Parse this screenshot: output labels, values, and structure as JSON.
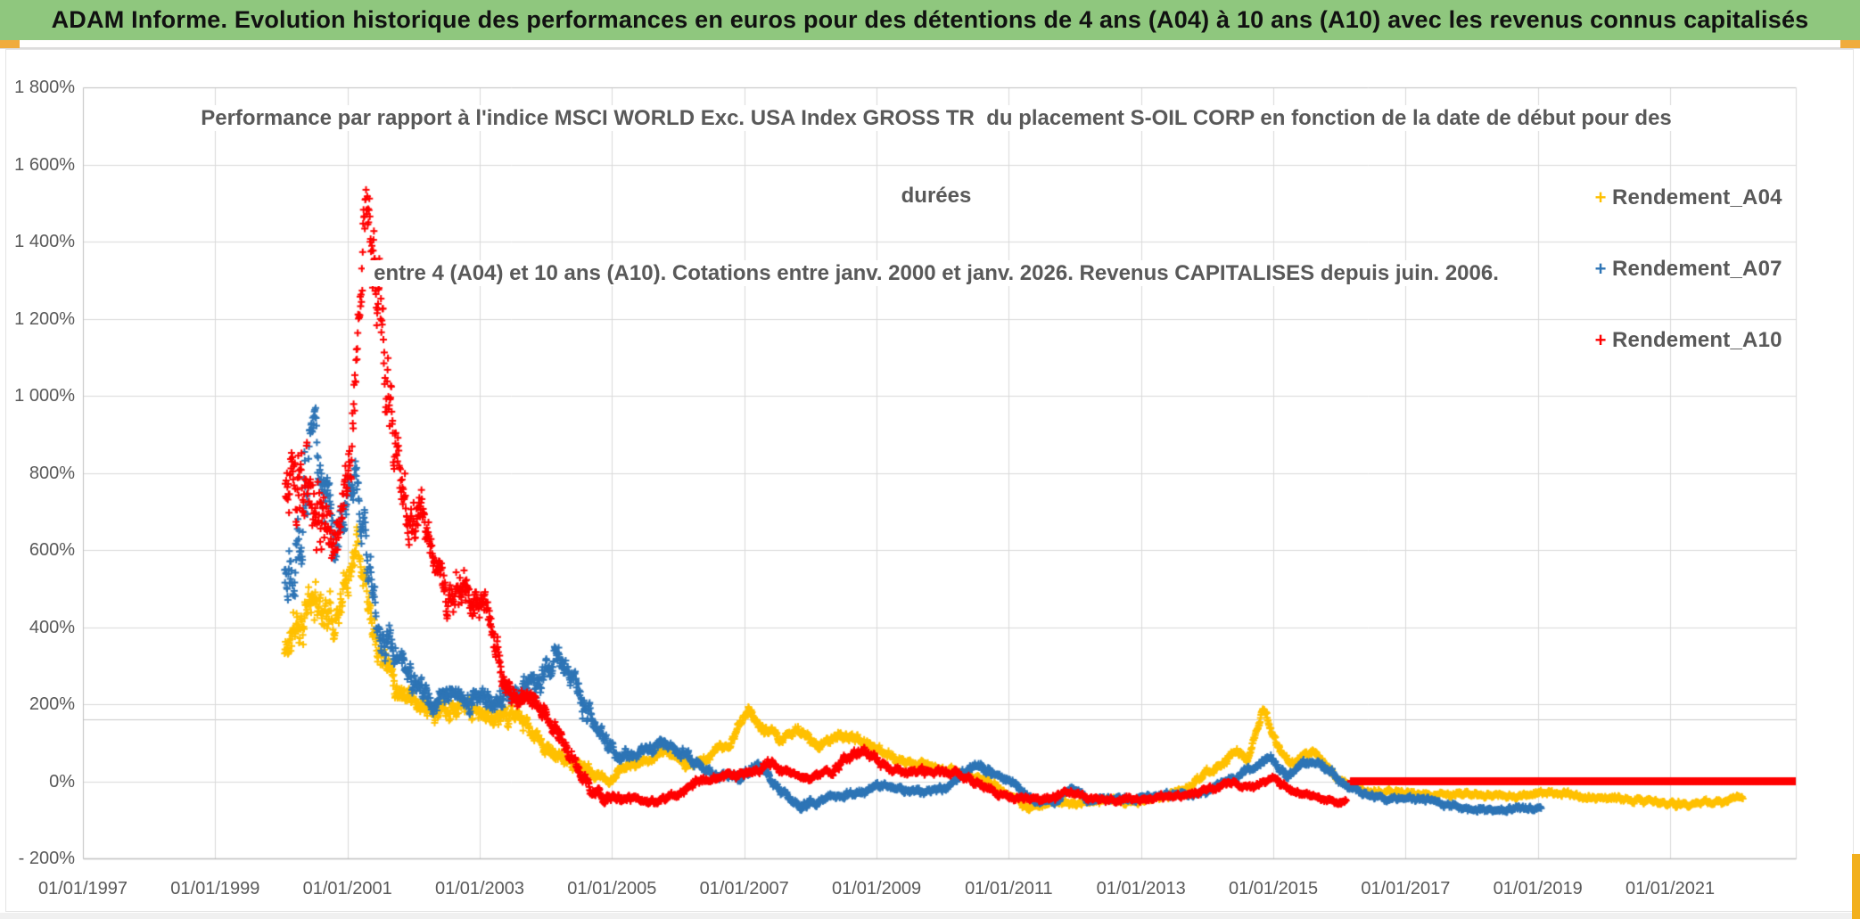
{
  "header": {
    "title": "ADAM Informe. Evolution historique des performances en euros pour des détentions de 4 ans (A04) à 10 ans (A10) avec les revenus connus capitalisés",
    "bg_color": "#8FC77E",
    "accent_color": "#F0AC3C"
  },
  "chart_data": {
    "type": "scatter",
    "title_lines": [
      "Performance par rapport à l'indice MSCI WORLD Exc. USA Index GROSS TR  du placement S-OIL CORP en fonction de la date de début pour des",
      "durées",
      "entre 4 (A04) et 10 ans (A10). Cotations entre janv. 2000 et janv. 2026. Revenus CAPITALISES depuis juin. 2006."
    ],
    "xlabel": "",
    "ylabel": "",
    "grid": true,
    "legend_position": "right",
    "y_axis": {
      "min": -200,
      "max": 1800,
      "ticks": [
        {
          "label": "1 800%",
          "value": 1800
        },
        {
          "label": "1 600%",
          "value": 1600
        },
        {
          "label": "1 400%",
          "value": 1400
        },
        {
          "label": "1 200%",
          "value": 1200
        },
        {
          "label": "1 000%",
          "value": 1000
        },
        {
          "label": "800%",
          "value": 800
        },
        {
          "label": "600%",
          "value": 600
        },
        {
          "label": "400%",
          "value": 400
        },
        {
          "label": "200%",
          "value": 200
        },
        {
          "label": "0%",
          "value": 0
        },
        {
          "label": "- 200%",
          "value": -200
        }
      ],
      "extra_gridline_value": 160
    },
    "x_axis": {
      "min_year": 1997,
      "max_year": 2022.9,
      "gridline_years": [
        1999,
        2001,
        2003,
        2005,
        2007,
        2009,
        2011,
        2013,
        2015,
        2017,
        2019,
        2021
      ],
      "ticks": [
        {
          "label": "01/01/1997",
          "year": 1997
        },
        {
          "label": "01/01/1999",
          "year": 1999
        },
        {
          "label": "01/01/2001",
          "year": 2001
        },
        {
          "label": "01/01/2003",
          "year": 2003
        },
        {
          "label": "01/01/2005",
          "year": 2005
        },
        {
          "label": "01/01/2007",
          "year": 2007
        },
        {
          "label": "01/01/2009",
          "year": 2009
        },
        {
          "label": "01/01/2011",
          "year": 2011
        },
        {
          "label": "01/01/2013",
          "year": 2013
        },
        {
          "label": "01/01/2015",
          "year": 2015
        },
        {
          "label": "01/01/2017",
          "year": 2017
        },
        {
          "label": "01/01/2019",
          "year": 2019
        },
        {
          "label": "01/01/2021",
          "year": 2021
        }
      ]
    },
    "legend": [
      {
        "label": "Rendement_A04",
        "color": "#FFC000",
        "marker": "+"
      },
      {
        "label": "Rendement_A07",
        "color": "#2E75B6",
        "marker": "+"
      },
      {
        "label": "Rendement_A10",
        "color": "#FF0000",
        "marker": "+"
      }
    ],
    "series": [
      {
        "name": "Rendement_A04",
        "color": "#FFC000",
        "seed": 11,
        "points_per_year": 160,
        "anchors": [
          [
            2000.05,
            330,
            60
          ],
          [
            2000.3,
            430,
            70
          ],
          [
            2000.55,
            470,
            60
          ],
          [
            2000.8,
            420,
            50
          ],
          [
            2001.0,
            520,
            60
          ],
          [
            2001.15,
            650,
            50
          ],
          [
            2001.3,
            500,
            60
          ],
          [
            2001.5,
            350,
            50
          ],
          [
            2001.75,
            250,
            40
          ],
          [
            2002.0,
            220,
            30
          ],
          [
            2002.3,
            170,
            30
          ],
          [
            2002.6,
            190,
            30
          ],
          [
            2002.9,
            180,
            25
          ],
          [
            2003.15,
            165,
            25
          ],
          [
            2003.5,
            180,
            25
          ],
          [
            2003.8,
            120,
            20
          ],
          [
            2004.1,
            70,
            20
          ],
          [
            2004.4,
            45,
            15
          ],
          [
            2004.7,
            25,
            15
          ],
          [
            2004.95,
            0,
            12
          ],
          [
            2005.2,
            40,
            12
          ],
          [
            2005.5,
            50,
            12
          ],
          [
            2005.8,
            80,
            12
          ],
          [
            2006.1,
            45,
            12
          ],
          [
            2006.4,
            55,
            12
          ],
          [
            2006.8,
            100,
            15
          ],
          [
            2007.05,
            190,
            15
          ],
          [
            2007.3,
            130,
            15
          ],
          [
            2007.55,
            110,
            15
          ],
          [
            2007.8,
            135,
            15
          ],
          [
            2008.1,
            90,
            15
          ],
          [
            2008.5,
            120,
            15
          ],
          [
            2008.75,
            110,
            12
          ],
          [
            2009.1,
            75,
            12
          ],
          [
            2009.5,
            45,
            10
          ],
          [
            2009.9,
            35,
            10
          ],
          [
            2010.3,
            20,
            10
          ],
          [
            2010.6,
            10,
            10
          ],
          [
            2011.0,
            -35,
            10
          ],
          [
            2011.3,
            -70,
            8
          ],
          [
            2011.6,
            -55,
            8
          ],
          [
            2012.0,
            -60,
            8
          ],
          [
            2012.4,
            -50,
            8
          ],
          [
            2012.9,
            -50,
            8
          ],
          [
            2013.3,
            -45,
            8
          ],
          [
            2013.7,
            -15,
            10
          ],
          [
            2014.0,
            20,
            10
          ],
          [
            2014.25,
            45,
            10
          ],
          [
            2014.45,
            80,
            10
          ],
          [
            2014.6,
            60,
            10
          ],
          [
            2014.85,
            185,
            12
          ],
          [
            2015.05,
            90,
            12
          ],
          [
            2015.3,
            45,
            10
          ],
          [
            2015.6,
            80,
            10
          ],
          [
            2016.0,
            0,
            8
          ],
          [
            2016.4,
            -25,
            8
          ],
          [
            2016.8,
            -30,
            8
          ],
          [
            2017.3,
            -35,
            8
          ],
          [
            2017.8,
            -30,
            8
          ],
          [
            2018.3,
            -40,
            8
          ],
          [
            2018.8,
            -35,
            8
          ],
          [
            2019.3,
            -30,
            8
          ],
          [
            2019.8,
            -40,
            8
          ],
          [
            2020.3,
            -45,
            8
          ],
          [
            2020.8,
            -55,
            8
          ],
          [
            2021.3,
            -60,
            8
          ],
          [
            2021.7,
            -55,
            8
          ],
          [
            2021.95,
            -40,
            8
          ],
          [
            2022.1,
            -45,
            6
          ]
        ]
      },
      {
        "name": "Rendement_A07",
        "color": "#2E75B6",
        "seed": 22,
        "points_per_year": 160,
        "anchors": [
          [
            2000.05,
            550,
            120
          ],
          [
            2000.3,
            700,
            150
          ],
          [
            2000.5,
            900,
            100
          ],
          [
            2000.65,
            800,
            100
          ],
          [
            2000.8,
            650,
            80
          ],
          [
            2001.0,
            700,
            80
          ],
          [
            2001.15,
            780,
            60
          ],
          [
            2001.3,
            600,
            80
          ],
          [
            2001.5,
            400,
            60
          ],
          [
            2001.7,
            320,
            50
          ],
          [
            2001.9,
            280,
            40
          ],
          [
            2002.1,
            230,
            40
          ],
          [
            2002.4,
            210,
            30
          ],
          [
            2002.7,
            220,
            30
          ],
          [
            2003.0,
            200,
            30
          ],
          [
            2003.3,
            220,
            30
          ],
          [
            2003.6,
            230,
            30
          ],
          [
            2003.9,
            270,
            40
          ],
          [
            2004.2,
            320,
            40
          ],
          [
            2004.5,
            230,
            40
          ],
          [
            2004.8,
            120,
            25
          ],
          [
            2005.1,
            70,
            20
          ],
          [
            2005.4,
            70,
            15
          ],
          [
            2005.8,
            100,
            15
          ],
          [
            2006.1,
            70,
            15
          ],
          [
            2006.5,
            20,
            12
          ],
          [
            2006.9,
            10,
            10
          ],
          [
            2007.2,
            40,
            12
          ],
          [
            2007.5,
            -20,
            12
          ],
          [
            2007.9,
            -65,
            10
          ],
          [
            2008.3,
            -40,
            10
          ],
          [
            2008.7,
            -35,
            10
          ],
          [
            2009.0,
            -10,
            10
          ],
          [
            2009.3,
            -20,
            10
          ],
          [
            2009.7,
            -30,
            10
          ],
          [
            2010.1,
            -10,
            10
          ],
          [
            2010.5,
            45,
            12
          ],
          [
            2010.8,
            20,
            10
          ],
          [
            2011.1,
            -10,
            10
          ],
          [
            2011.4,
            -55,
            8
          ],
          [
            2011.7,
            -50,
            8
          ],
          [
            2011.95,
            -15,
            8
          ],
          [
            2012.2,
            -50,
            8
          ],
          [
            2012.6,
            -45,
            8
          ],
          [
            2013.1,
            -40,
            8
          ],
          [
            2013.6,
            -35,
            8
          ],
          [
            2014.0,
            -25,
            8
          ],
          [
            2014.4,
            10,
            10
          ],
          [
            2014.7,
            35,
            10
          ],
          [
            2014.95,
            65,
            10
          ],
          [
            2015.2,
            10,
            10
          ],
          [
            2015.45,
            40,
            10
          ],
          [
            2015.65,
            55,
            10
          ],
          [
            2016.0,
            0,
            10
          ],
          [
            2016.4,
            -35,
            8
          ],
          [
            2016.8,
            -45,
            8
          ],
          [
            2017.3,
            -45,
            8
          ],
          [
            2017.9,
            -70,
            8
          ],
          [
            2018.3,
            -75,
            8
          ],
          [
            2018.7,
            -70,
            8
          ],
          [
            2019.05,
            -70,
            8
          ]
        ]
      },
      {
        "name": "Rendement_A10",
        "color": "#FF0000",
        "seed": 33,
        "points_per_year": 160,
        "anchors": [
          [
            2000.06,
            750,
            130
          ],
          [
            2000.4,
            750,
            150
          ],
          [
            2000.7,
            650,
            120
          ],
          [
            2000.9,
            620,
            80
          ],
          [
            2001.05,
            850,
            100
          ],
          [
            2001.18,
            1250,
            140
          ],
          [
            2001.3,
            1440,
            100
          ],
          [
            2001.45,
            1200,
            150
          ],
          [
            2001.6,
            1000,
            120
          ],
          [
            2001.75,
            850,
            100
          ],
          [
            2001.9,
            700,
            80
          ],
          [
            2002.1,
            680,
            60
          ],
          [
            2002.3,
            580,
            60
          ],
          [
            2002.5,
            450,
            60
          ],
          [
            2002.7,
            520,
            60
          ],
          [
            2002.9,
            450,
            50
          ],
          [
            2003.05,
            500,
            55
          ],
          [
            2003.2,
            350,
            60
          ],
          [
            2003.35,
            250,
            40
          ],
          [
            2003.6,
            220,
            30
          ],
          [
            2003.9,
            200,
            25
          ],
          [
            2004.1,
            150,
            25
          ],
          [
            2004.4,
            60,
            20
          ],
          [
            2004.7,
            -30,
            15
          ],
          [
            2005.0,
            -45,
            12
          ],
          [
            2005.5,
            -50,
            10
          ],
          [
            2006.0,
            -40,
            10
          ],
          [
            2006.3,
            0,
            10
          ],
          [
            2006.6,
            10,
            10
          ],
          [
            2007.0,
            20,
            12
          ],
          [
            2007.4,
            45,
            12
          ],
          [
            2007.7,
            20,
            10
          ],
          [
            2008.0,
            10,
            10
          ],
          [
            2008.4,
            40,
            12
          ],
          [
            2008.8,
            80,
            15
          ],
          [
            2009.1,
            40,
            12
          ],
          [
            2009.4,
            20,
            10
          ],
          [
            2009.8,
            30,
            10
          ],
          [
            2010.2,
            20,
            10
          ],
          [
            2010.6,
            -10,
            10
          ],
          [
            2011.0,
            -40,
            10
          ],
          [
            2011.5,
            -50,
            8
          ],
          [
            2011.9,
            -25,
            8
          ],
          [
            2012.2,
            -45,
            8
          ],
          [
            2012.6,
            -50,
            8
          ],
          [
            2013.0,
            -45,
            8
          ],
          [
            2013.5,
            -40,
            8
          ],
          [
            2014.0,
            -25,
            8
          ],
          [
            2014.4,
            -5,
            8
          ],
          [
            2014.7,
            -15,
            8
          ],
          [
            2015.0,
            5,
            8
          ],
          [
            2015.3,
            -30,
            8
          ],
          [
            2015.7,
            -40,
            8
          ],
          [
            2016.0,
            -55,
            8
          ],
          [
            2016.1,
            -50,
            8
          ]
        ],
        "flat_segment": {
          "from": 2016.17,
          "to": 2022.9,
          "value": 0
        }
      }
    ]
  }
}
